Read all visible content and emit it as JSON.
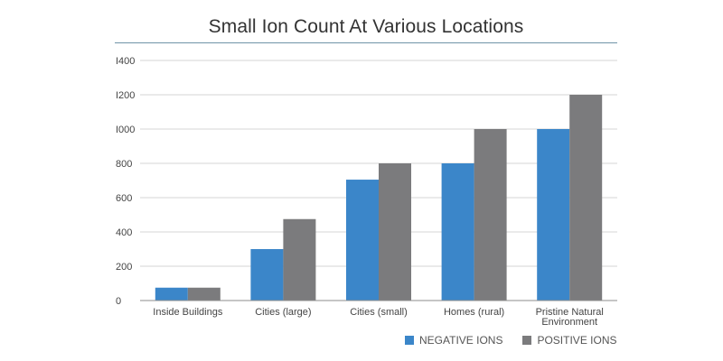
{
  "chart_data": {
    "type": "bar",
    "title": "Small Ion Count At Various Locations",
    "xlabel": "",
    "ylabel": "",
    "ylim": [
      0,
      1400
    ],
    "yticks": [
      "0",
      "200",
      "400",
      "600",
      "800",
      "I000",
      "I200",
      "I400"
    ],
    "grid": true,
    "legend_position": "bottom-right",
    "categories": [
      [
        "Inside Buildings"
      ],
      [
        "Cities (large)"
      ],
      [
        "Cities (small)"
      ],
      [
        "Homes (rural)"
      ],
      [
        "Pristine Natural",
        "Environment"
      ]
    ],
    "series": [
      {
        "name": "NEGATIVE IONS",
        "color": "#3b86c9",
        "values": [
          75,
          300,
          705,
          800,
          1000
        ]
      },
      {
        "name": "POSITIVE IONS",
        "color": "#7b7b7d",
        "values": [
          75,
          475,
          800,
          1000,
          1200
        ]
      }
    ]
  }
}
